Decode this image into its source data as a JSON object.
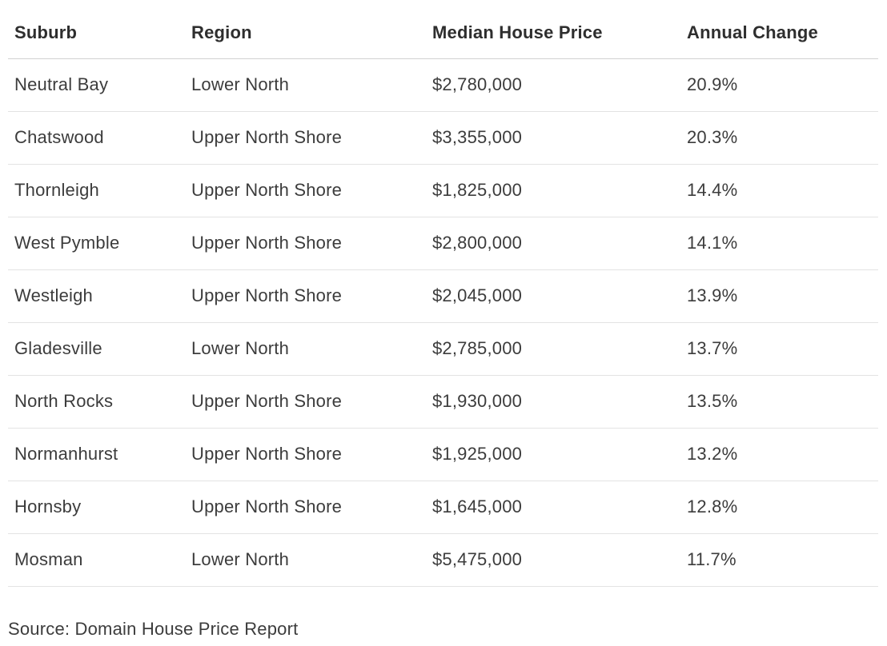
{
  "chart_data": {
    "type": "table",
    "title": "",
    "columns": [
      "Suburb",
      "Region",
      "Median House Price",
      "Annual Change"
    ],
    "rows": [
      [
        "Neutral Bay",
        "Lower North",
        "$2,780,000",
        "20.9%"
      ],
      [
        "Chatswood",
        "Upper North Shore",
        "$3,355,000",
        "20.3%"
      ],
      [
        "Thornleigh",
        "Upper North Shore",
        "$1,825,000",
        "14.4%"
      ],
      [
        "West Pymble",
        "Upper North Shore",
        "$2,800,000",
        "14.1%"
      ],
      [
        "Westleigh",
        "Upper North Shore",
        "$2,045,000",
        "13.9%"
      ],
      [
        "Gladesville",
        "Lower North",
        "$2,785,000",
        "13.7%"
      ],
      [
        "North Rocks",
        "Upper North Shore",
        "$1,930,000",
        "13.5%"
      ],
      [
        "Normanhurst",
        "Upper North Shore",
        "$1,925,000",
        "13.2%"
      ],
      [
        "Hornsby",
        "Upper North Shore",
        "$1,645,000",
        "12.8%"
      ],
      [
        "Mosman",
        "Lower North",
        "$5,475,000",
        "11.7%"
      ]
    ],
    "median_house_price_values": [
      2780000,
      3355000,
      1825000,
      2800000,
      2045000,
      2785000,
      1930000,
      1925000,
      1645000,
      5475000
    ],
    "annual_change_percent_values": [
      20.9,
      20.3,
      14.4,
      14.1,
      13.9,
      13.7,
      13.5,
      13.2,
      12.8,
      11.7
    ],
    "source": "Source: Domain House Price Report"
  },
  "table": {
    "columns": [
      {
        "label": "Suburb"
      },
      {
        "label": "Region"
      },
      {
        "label": "Median House Price"
      },
      {
        "label": "Annual Change"
      }
    ],
    "rows": [
      {
        "suburb": "Neutral Bay",
        "region": "Lower North",
        "price": "$2,780,000",
        "change": "20.9%"
      },
      {
        "suburb": "Chatswood",
        "region": "Upper North Shore",
        "price": "$3,355,000",
        "change": "20.3%"
      },
      {
        "suburb": "Thornleigh",
        "region": "Upper North Shore",
        "price": "$1,825,000",
        "change": "14.4%"
      },
      {
        "suburb": "West Pymble",
        "region": "Upper North Shore",
        "price": "$2,800,000",
        "change": "14.1%"
      },
      {
        "suburb": "Westleigh",
        "region": "Upper North Shore",
        "price": "$2,045,000",
        "change": "13.9%"
      },
      {
        "suburb": "Gladesville",
        "region": "Lower North",
        "price": "$2,785,000",
        "change": "13.7%"
      },
      {
        "suburb": "North Rocks",
        "region": "Upper North Shore",
        "price": "$1,930,000",
        "change": "13.5%"
      },
      {
        "suburb": "Normanhurst",
        "region": "Upper North Shore",
        "price": "$1,925,000",
        "change": "13.2%"
      },
      {
        "suburb": "Hornsby",
        "region": "Upper North Shore",
        "price": "$1,645,000",
        "change": "12.8%"
      },
      {
        "suburb": "Mosman",
        "region": "Lower North",
        "price": "$5,475,000",
        "change": "11.7%"
      }
    ]
  },
  "footer": {
    "source_label": "Source: Domain House Price Report"
  },
  "colors": {
    "background": "#ffffff",
    "header_text": "#2e2e2e",
    "body_text": "#3c3c3c",
    "header_border": "#d2d2d2",
    "row_border": "#e3e3e3"
  }
}
